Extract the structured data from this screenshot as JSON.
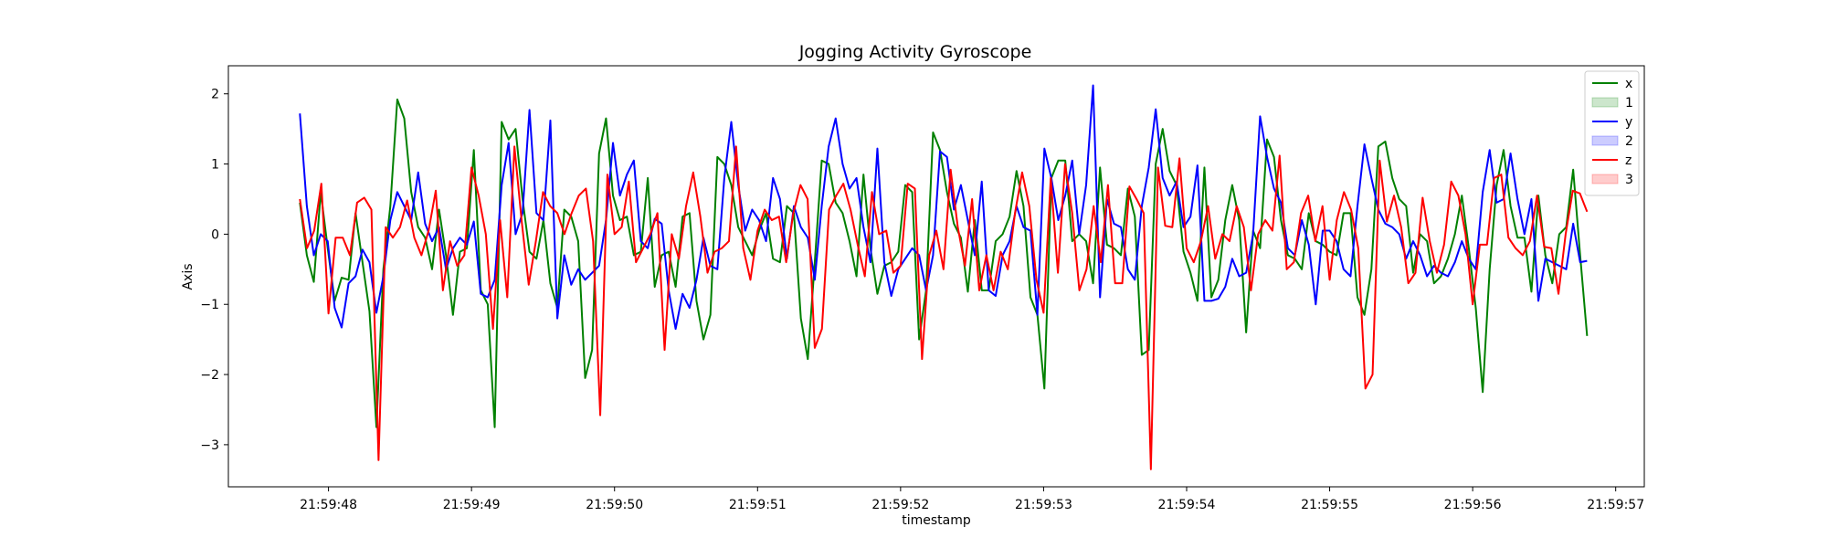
{
  "chart_data": {
    "type": "line",
    "title": "Jogging Activity Gyroscope",
    "xlabel": "timestamp",
    "ylabel": "Axis",
    "x_start": "21:59:47.80",
    "x_end": "21:59:56.80",
    "xlim": [
      "21:59:47.30",
      "21:59:57.20"
    ],
    "ylim": [
      -3.6,
      2.4
    ],
    "x_ticks": [
      "21:59:48",
      "21:59:49",
      "21:59:50",
      "21:59:51",
      "21:59:52",
      "21:59:53",
      "21:59:54",
      "21:59:55",
      "21:59:56",
      "21:59:57"
    ],
    "y_ticks": [
      -3,
      -2,
      -1,
      0,
      1,
      2
    ],
    "grid": false,
    "legend_position": "top-right",
    "legend": [
      {
        "label": "x",
        "kind": "line",
        "color": "#008000"
      },
      {
        "label": "1",
        "kind": "patch",
        "color": "#008000"
      },
      {
        "label": "y",
        "kind": "line",
        "color": "#0000ff"
      },
      {
        "label": "2",
        "kind": "patch",
        "color": "#0000ff"
      },
      {
        "label": "z",
        "kind": "line",
        "color": "#ff0000"
      },
      {
        "label": "3",
        "kind": "patch",
        "color": "#ff0000"
      }
    ],
    "series": [
      {
        "name": "x",
        "color": "#008000",
        "values": [
          0.45,
          -0.3,
          -0.68,
          0.6,
          -0.2,
          -0.95,
          -0.62,
          -0.65,
          0.3,
          -0.4,
          -1.1,
          -2.75,
          -0.5,
          0.4,
          1.92,
          1.65,
          0.6,
          0.1,
          -0.05,
          -0.5,
          0.35,
          -0.3,
          -1.15,
          -0.25,
          -0.2,
          1.2,
          -0.8,
          -1.0,
          -2.75,
          1.6,
          1.35,
          1.5,
          0.5,
          -0.25,
          -0.35,
          0.2,
          -0.7,
          -1.05,
          0.35,
          0.25,
          -0.1,
          -2.05,
          -1.65,
          1.15,
          1.65,
          0.55,
          0.2,
          0.25,
          -0.3,
          -0.25,
          0.8,
          -0.75,
          -0.3,
          -0.25,
          -0.75,
          0.25,
          0.3,
          -0.95,
          -1.5,
          -1.15,
          1.1,
          1.0,
          0.7,
          0.1,
          -0.1,
          -0.3,
          0.05,
          0.3,
          -0.35,
          -0.4,
          0.4,
          0.3,
          -1.2,
          -1.78,
          -0.4,
          1.05,
          1.0,
          0.45,
          0.3,
          -0.1,
          -0.6,
          0.85,
          -0.2,
          -0.85,
          -0.45,
          -0.4,
          -0.25,
          0.7,
          0.6,
          -1.5,
          -0.8,
          1.45,
          1.2,
          0.6,
          0.15,
          -0.05,
          -0.82,
          0.2,
          -0.8,
          -0.8,
          -0.1,
          0.0,
          0.25,
          0.9,
          0.4,
          -0.9,
          -1.15,
          -2.2,
          0.8,
          1.05,
          1.05,
          -0.1,
          0.0,
          -0.1,
          -0.7,
          0.95,
          -0.15,
          -0.2,
          -0.3,
          0.65,
          0.25,
          -1.72,
          -1.65,
          1.0,
          1.5,
          0.9,
          0.7,
          -0.25,
          -0.55,
          -0.95,
          0.95,
          -0.9,
          -0.65,
          0.2,
          0.7,
          0.2,
          -1.4,
          0.05,
          -0.2,
          1.35,
          1.1,
          0.2,
          -0.3,
          -0.35,
          -0.5,
          0.3,
          -0.1,
          -0.15,
          -0.25,
          -0.3,
          0.3,
          0.3,
          -0.9,
          -1.15,
          -0.5,
          1.25,
          1.32,
          0.8,
          0.5,
          0.4,
          -0.55,
          0.0,
          -0.1,
          -0.7,
          -0.6,
          -0.35,
          0.0,
          0.55,
          -0.2,
          -1.05,
          -2.25,
          -0.5,
          0.7,
          1.2,
          0.4,
          -0.05,
          -0.05,
          -0.82,
          0.55,
          -0.3,
          -0.7,
          0.0,
          0.1,
          0.92,
          -0.3,
          -1.45
        ]
      },
      {
        "name": "y",
        "color": "#0000ff",
        "values": [
          1.72,
          0.4,
          -0.3,
          0.0,
          -0.1,
          -1.05,
          -1.33,
          -0.7,
          -0.6,
          -0.22,
          -0.4,
          -1.12,
          -0.6,
          0.2,
          0.6,
          0.4,
          0.2,
          0.88,
          0.15,
          -0.1,
          0.1,
          -0.5,
          -0.2,
          -0.05,
          -0.15,
          0.18,
          -0.85,
          -0.9,
          -0.65,
          0.7,
          1.3,
          0.0,
          0.3,
          1.77,
          0.3,
          0.2,
          1.62,
          -1.2,
          -0.3,
          -0.72,
          -0.5,
          -0.65,
          -0.55,
          -0.45,
          0.2,
          1.3,
          0.55,
          0.85,
          1.05,
          -0.1,
          -0.2,
          0.22,
          0.15,
          -0.8,
          -1.35,
          -0.85,
          -1.05,
          -0.65,
          -0.05,
          -0.45,
          -0.5,
          0.8,
          1.6,
          0.7,
          0.05,
          0.35,
          0.2,
          -0.1,
          0.8,
          0.5,
          -0.35,
          0.4,
          0.1,
          -0.05,
          -0.65,
          0.4,
          1.25,
          1.65,
          1.0,
          0.65,
          0.8,
          0.1,
          -0.4,
          1.22,
          -0.4,
          -0.88,
          -0.5,
          -0.35,
          -0.2,
          -0.3,
          -0.8,
          -0.3,
          1.18,
          1.1,
          0.35,
          0.7,
          0.2,
          -0.3,
          0.75,
          -0.8,
          -0.88,
          -0.3,
          -0.1,
          0.4,
          0.1,
          0.05,
          -1.15,
          1.22,
          0.8,
          0.2,
          0.55,
          1.05,
          0.0,
          0.7,
          2.12,
          -0.9,
          0.5,
          0.15,
          0.1,
          -0.5,
          -0.65,
          0.4,
          0.95,
          1.78,
          0.8,
          0.55,
          0.75,
          0.1,
          0.25,
          0.98,
          -0.95,
          -0.95,
          -0.92,
          -0.75,
          -0.35,
          -0.6,
          -0.55,
          0.0,
          1.68,
          1.1,
          0.65,
          0.45,
          -0.2,
          -0.3,
          0.2,
          -0.15,
          -1.0,
          0.05,
          0.05,
          -0.1,
          -0.5,
          -0.6,
          0.4,
          1.28,
          0.8,
          0.35,
          0.15,
          0.1,
          0.0,
          -0.35,
          -0.1,
          -0.3,
          -0.6,
          -0.45,
          -0.55,
          -0.6,
          -0.4,
          -0.1,
          -0.35,
          -0.5,
          0.6,
          1.2,
          0.45,
          0.5,
          1.15,
          0.5,
          0.0,
          0.5,
          -0.95,
          -0.35,
          -0.4,
          -0.45,
          -0.5,
          0.15,
          -0.4,
          -0.38
        ]
      },
      {
        "name": "z",
        "color": "#ff0000",
        "values": [
          0.5,
          -0.2,
          0.05,
          0.72,
          -1.13,
          -0.05,
          -0.05,
          -0.3,
          0.45,
          0.52,
          0.35,
          -3.22,
          0.1,
          -0.05,
          0.1,
          0.48,
          -0.05,
          -0.3,
          0.05,
          0.62,
          -0.8,
          -0.1,
          -0.45,
          -0.3,
          0.95,
          0.55,
          0.0,
          -1.35,
          0.2,
          -0.9,
          1.25,
          0.2,
          -0.72,
          -0.1,
          0.6,
          0.4,
          0.3,
          0.0,
          0.3,
          0.55,
          0.65,
          -0.1,
          -2.58,
          0.85,
          0.0,
          0.1,
          0.75,
          -0.4,
          -0.2,
          0.0,
          0.3,
          -1.65,
          0.0,
          -0.35,
          0.4,
          0.88,
          0.25,
          -0.55,
          -0.25,
          -0.2,
          -0.1,
          1.25,
          -0.2,
          -0.65,
          0.05,
          0.35,
          0.2,
          0.25,
          -0.4,
          0.3,
          0.7,
          0.5,
          -1.62,
          -1.35,
          0.35,
          0.55,
          0.72,
          0.35,
          -0.15,
          -0.6,
          0.6,
          0.0,
          0.05,
          -0.55,
          -0.45,
          0.72,
          0.65,
          -1.78,
          -0.3,
          0.05,
          -0.5,
          0.92,
          0.1,
          -0.45,
          0.5,
          -0.8,
          -0.3,
          -0.8,
          -0.25,
          -0.5,
          0.3,
          0.88,
          0.4,
          -0.65,
          -1.12,
          0.8,
          -0.55,
          1.0,
          0.3,
          -0.8,
          -0.5,
          0.4,
          -0.4,
          0.7,
          -0.7,
          -0.7,
          0.68,
          0.5,
          0.3,
          -3.35,
          0.95,
          0.12,
          0.1,
          1.08,
          -0.2,
          -0.4,
          -0.1,
          0.4,
          -0.35,
          0.0,
          -0.1,
          0.4,
          0.1,
          -0.8,
          0.0,
          0.2,
          0.05,
          1.12,
          -0.5,
          -0.4,
          0.3,
          0.55,
          -0.1,
          0.4,
          -0.65,
          0.2,
          0.6,
          0.35,
          -0.2,
          -2.2,
          -2.0,
          1.05,
          0.18,
          0.55,
          0.1,
          -0.7,
          -0.55,
          0.52,
          -0.1,
          -0.55,
          -0.15,
          0.75,
          0.55,
          0.0,
          -1.0,
          -0.15,
          -0.15,
          0.8,
          0.85,
          -0.05,
          -0.2,
          -0.3,
          -0.1,
          0.55,
          -0.18,
          -0.2,
          -0.85,
          0.0,
          0.62,
          0.58,
          0.32
        ]
      }
    ]
  }
}
